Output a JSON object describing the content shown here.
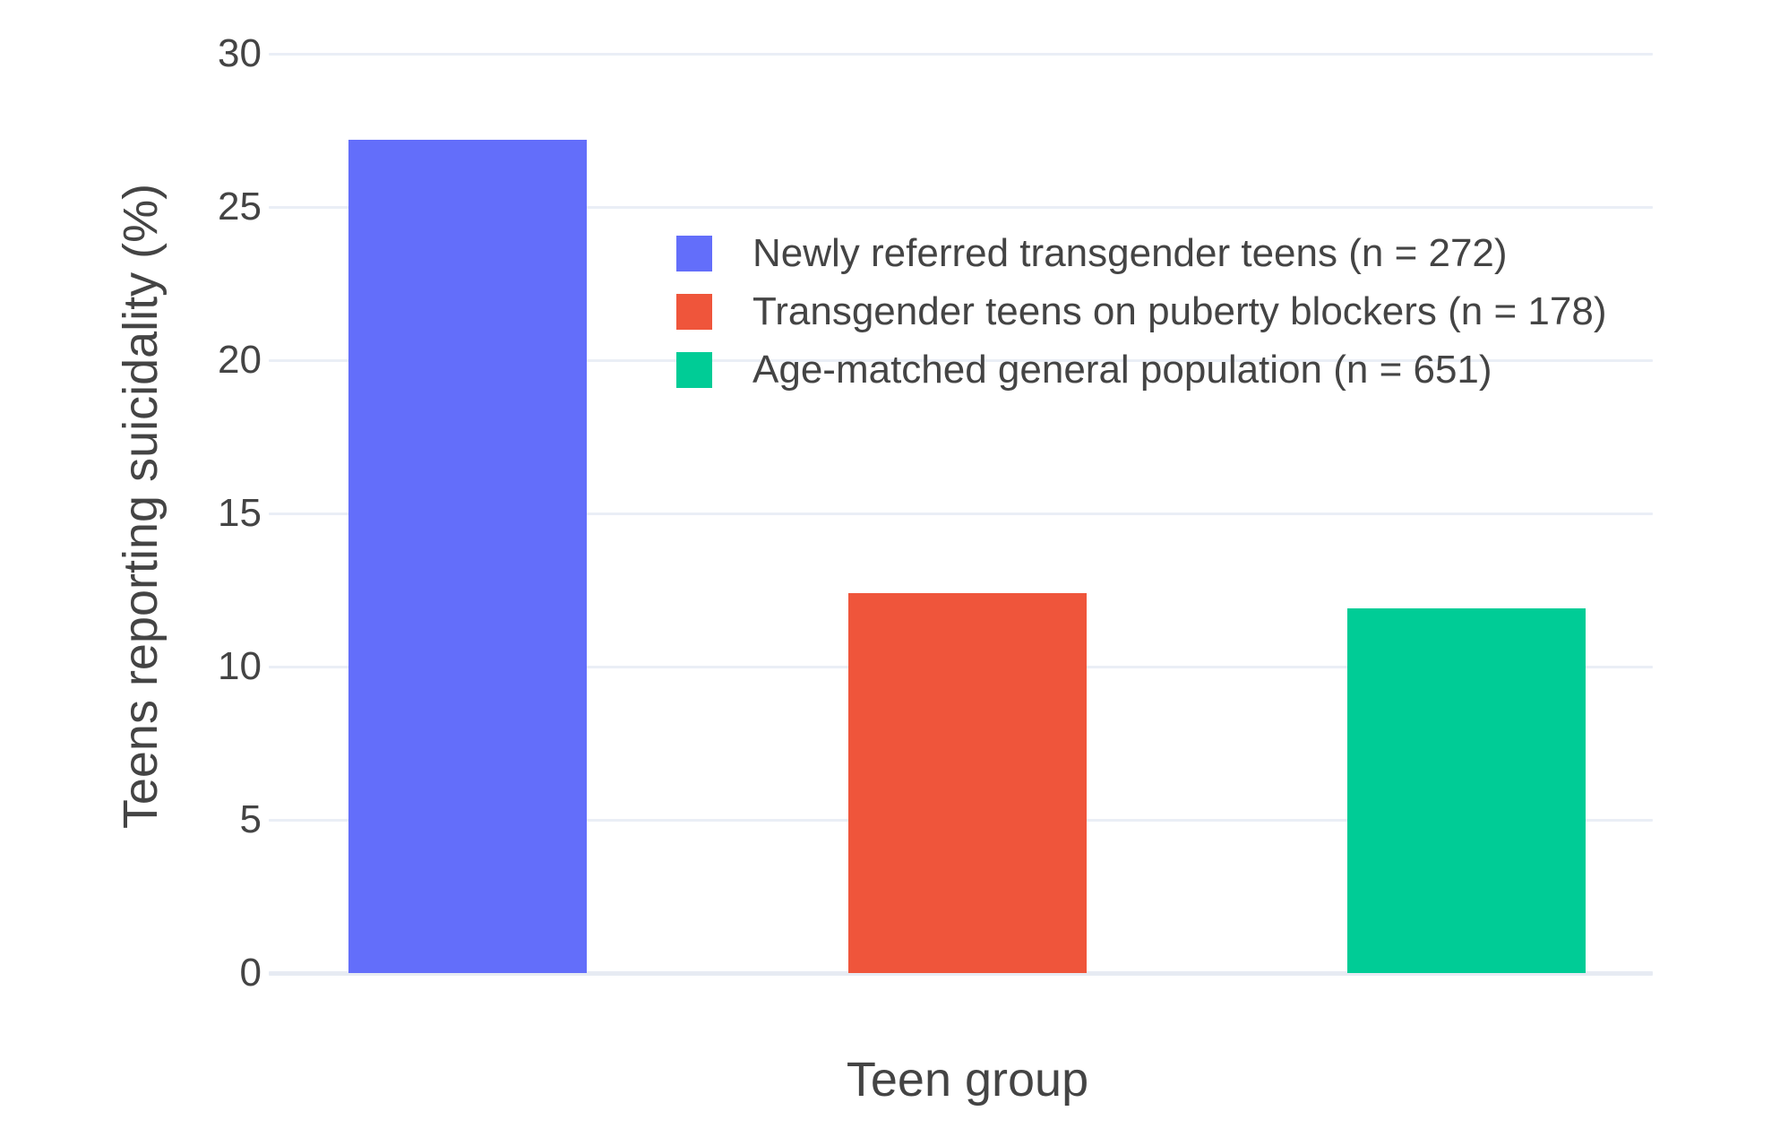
{
  "chart_data": {
    "type": "bar",
    "title": "",
    "xlabel": "Teen group",
    "ylabel": "Teens reporting suicidality (%)",
    "categories": [
      "Newly referred transgender teens (n = 272)",
      "Transgender teens on puberty blockers (n = 178)",
      "Age-matched general population (n = 651)"
    ],
    "category_ids": [
      "newly-referred-transgender-teens",
      "transgender-teens-on-puberty-blockers",
      "age-matched-general-population"
    ],
    "values": [
      27.2,
      12.4,
      11.9
    ],
    "bar_colors": [
      "#636EFA",
      "#EF553B",
      "#00CC96"
    ],
    "yticks": [
      0,
      5,
      10,
      15,
      20,
      25,
      30
    ],
    "ylim": [
      0,
      30.4
    ],
    "grid": true,
    "legend_position": "inside-top-center",
    "legend": [
      {
        "label": "Newly referred transgender teens (n = 272)",
        "color": "#636EFA"
      },
      {
        "label": "Transgender teens on puberty blockers (n = 178)",
        "color": "#EF553B"
      },
      {
        "label": "Age-matched general population (n = 651)",
        "color": "#00CC96"
      }
    ]
  },
  "style": {
    "background": "#ffffff",
    "grid_color": "#EAEEF6",
    "zero_line_color": "#E7EBF3",
    "text_color": "#444444"
  }
}
